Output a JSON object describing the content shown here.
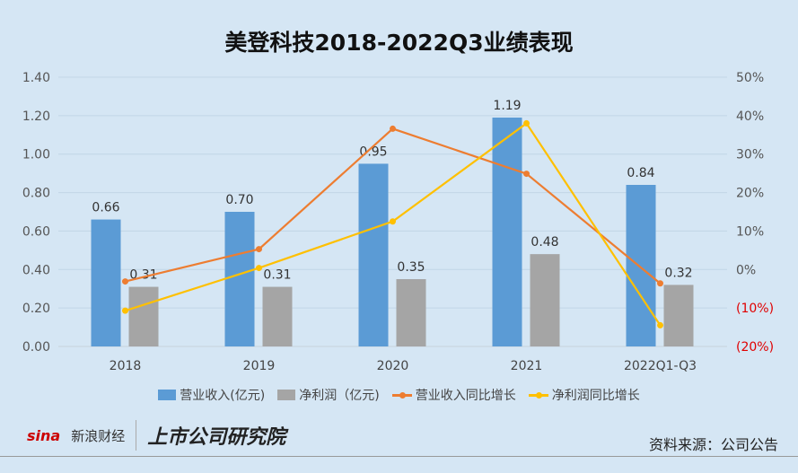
{
  "chart_data": {
    "type": "bar+line",
    "title": "美登科技2018-2022Q3业绩表现",
    "categories": [
      "2018",
      "2019",
      "2020",
      "2021",
      "2022Q1-Q3"
    ],
    "left_axis": {
      "ylim": [
        0,
        1.4
      ],
      "ticks": [
        "0.00",
        "0.20",
        "0.40",
        "0.60",
        "0.80",
        "1.00",
        "1.20",
        "1.40"
      ]
    },
    "right_axis": {
      "ylim": [
        -20,
        50
      ],
      "ticks": [
        "(20%)",
        "(10%)",
        "0%",
        "10%",
        "20%",
        "30%",
        "40%",
        "50%"
      ],
      "negative_color": "#e00000"
    },
    "grid": true,
    "legend_position": "bottom",
    "series": [
      {
        "name": "营业收入(亿元)",
        "type": "bar",
        "axis": "left",
        "color": "#5b9bd5",
        "values": [
          0.66,
          0.7,
          0.95,
          1.19,
          0.84
        ],
        "labels": [
          "0.66",
          "0.70",
          "0.95",
          "1.19",
          "0.84"
        ]
      },
      {
        "name": "净利润（亿元)",
        "type": "bar",
        "axis": "left",
        "color": "#a5a5a5",
        "values": [
          0.31,
          0.31,
          0.35,
          0.48,
          0.32
        ],
        "labels": [
          "0.31",
          "0.31",
          "0.35",
          "0.48",
          "0.32"
        ]
      },
      {
        "name": "营业收入同比增长",
        "type": "line",
        "axis": "right",
        "color": "#ed7d31",
        "values": [
          -3.1,
          5.3,
          36.6,
          24.9,
          -3.6
        ]
      },
      {
        "name": "净利润同比增长",
        "type": "line",
        "axis": "right",
        "color": "#ffc000",
        "values": [
          -10.7,
          0.4,
          12.5,
          38.0,
          -14.5
        ]
      }
    ]
  },
  "footer": {
    "sina_logo": "sina",
    "sina_name": "新浪财经",
    "institute": "上市公司研究院",
    "source": "资料来源：公司公告"
  }
}
